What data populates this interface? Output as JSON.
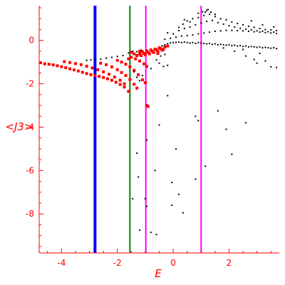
{
  "chart_data": {
    "type": "scatter",
    "xlabel": "E",
    "ylabel": "<J3>",
    "xlim": [
      -4.8,
      3.8
    ],
    "ylim": [
      -9.8,
      1.6
    ],
    "x_ticks": [
      -4,
      -2,
      0,
      2
    ],
    "x_tick_labels": [
      "-4",
      "-2",
      "0",
      "2"
    ],
    "y_ticks": [
      0,
      -2,
      -4,
      -6,
      -8
    ],
    "y_tick_labels": [
      "0",
      "-2",
      "-4",
      "-6",
      "-8"
    ],
    "grid": false,
    "axis_color": "#ff0000",
    "vertical_lines": [
      {
        "x": -2.8,
        "color": "#0000ff"
      },
      {
        "x": -1.55,
        "color": "#008000"
      },
      {
        "x": -0.98,
        "color": "#ff00ff"
      },
      {
        "x": 1.0,
        "color": "#ff00ff"
      }
    ],
    "series": [
      {
        "color": "#ff0000",
        "points": [
          [
            -4.75,
            -1.03
          ],
          [
            -4.6,
            -1.08
          ],
          [
            -4.45,
            -1.1
          ],
          [
            -4.3,
            -1.13
          ],
          [
            -4.15,
            -1.17
          ],
          [
            -4.0,
            -1.21
          ],
          [
            -3.85,
            -1.26
          ],
          [
            -3.7,
            -1.31
          ],
          [
            -3.55,
            -1.36
          ],
          [
            -3.4,
            -1.41
          ],
          [
            -3.25,
            -1.47
          ],
          [
            -3.1,
            -1.53
          ],
          [
            -2.95,
            -1.58
          ],
          [
            -2.8,
            -1.62
          ],
          [
            -2.65,
            -1.66
          ],
          [
            -2.5,
            -1.71
          ],
          [
            -2.35,
            -1.77
          ],
          [
            -2.2,
            -1.84
          ],
          [
            -2.05,
            -1.93
          ],
          [
            -1.9,
            -2.03
          ],
          [
            -1.75,
            -2.15
          ],
          [
            -1.6,
            -2.35
          ],
          [
            -3.9,
            -0.98
          ],
          [
            -3.7,
            -1.02
          ],
          [
            -3.5,
            -1.07
          ],
          [
            -3.3,
            -1.12
          ],
          [
            -3.1,
            -1.19
          ],
          [
            -2.9,
            -1.27
          ],
          [
            -2.7,
            -1.35
          ],
          [
            -2.5,
            -1.45
          ],
          [
            -2.3,
            -1.56
          ],
          [
            -2.1,
            -1.69
          ],
          [
            -1.9,
            -1.84
          ],
          [
            -1.75,
            -2.0
          ],
          [
            -2.6,
            -1.05
          ],
          [
            -2.4,
            -1.12
          ],
          [
            -2.2,
            -1.22
          ],
          [
            -2.0,
            -1.35
          ],
          [
            -1.85,
            -1.48
          ],
          [
            -1.7,
            -1.62
          ],
          [
            -1.55,
            -1.8
          ],
          [
            -1.4,
            -2.02
          ],
          [
            -1.3,
            -2.2
          ],
          [
            -2.0,
            -0.92
          ],
          [
            -1.85,
            -1.0
          ],
          [
            -1.7,
            -1.1
          ],
          [
            -1.55,
            -1.22
          ],
          [
            -1.4,
            -1.38
          ],
          [
            -1.25,
            -1.58
          ],
          [
            -1.1,
            -1.82
          ],
          [
            -1.0,
            -1.95
          ],
          [
            -1.5,
            -0.78
          ],
          [
            -1.35,
            -0.85
          ],
          [
            -1.2,
            -0.95
          ],
          [
            -1.05,
            -1.08
          ],
          [
            -0.95,
            -1.2
          ],
          [
            -1.2,
            -0.62
          ],
          [
            -1.05,
            -0.6
          ],
          [
            -0.9,
            -0.55
          ],
          [
            -0.75,
            -0.5
          ],
          [
            -0.6,
            -0.44
          ],
          [
            -0.45,
            -0.38
          ],
          [
            -0.3,
            -0.3
          ],
          [
            -0.2,
            -0.26
          ],
          [
            -1.3,
            -0.7
          ],
          [
            -1.15,
            -0.7
          ],
          [
            -1.0,
            -0.66
          ],
          [
            -0.85,
            -0.62
          ],
          [
            -0.7,
            -0.56
          ],
          [
            -0.55,
            -0.5
          ],
          [
            -0.4,
            -0.45
          ],
          [
            -1.1,
            -0.52
          ],
          [
            -0.95,
            -0.48
          ],
          [
            -0.8,
            -0.44
          ],
          [
            -0.65,
            -0.4
          ],
          [
            -0.5,
            -0.34
          ],
          [
            -1.5,
            -0.55
          ],
          [
            -1.4,
            -0.62
          ],
          [
            -1.6,
            -0.85
          ],
          [
            -1.2,
            -0.5
          ],
          [
            -0.55,
            -0.6
          ],
          [
            -0.35,
            -0.42
          ],
          [
            -0.95,
            -3.0
          ],
          [
            -0.9,
            -3.05
          ]
        ]
      },
      {
        "color": "#000000",
        "points": [
          [
            -3.1,
            -0.92
          ],
          [
            -2.95,
            -0.9
          ],
          [
            -2.8,
            -0.88
          ],
          [
            -2.6,
            -0.86
          ],
          [
            -2.4,
            -0.82
          ],
          [
            -2.2,
            -0.78
          ],
          [
            -2.0,
            -0.74
          ],
          [
            -1.8,
            -0.7
          ],
          [
            -1.6,
            -0.58
          ],
          [
            -1.45,
            -0.5
          ],
          [
            -1.3,
            -0.52
          ],
          [
            -1.15,
            -0.45
          ],
          [
            -0.6,
            -0.9
          ],
          [
            -0.5,
            -1.05
          ],
          [
            -0.35,
            -1.2
          ],
          [
            -0.2,
            -1.15
          ],
          [
            -0.8,
            -1.3
          ],
          [
            -0.45,
            -0.72
          ],
          [
            -0.3,
            -0.65
          ],
          [
            -1.4,
            -1.45
          ],
          [
            -1.3,
            -1.7
          ],
          [
            -1.2,
            -1.85
          ],
          [
            -1.1,
            -1.62
          ],
          [
            -0.4,
            -0.25
          ],
          [
            -0.3,
            -0.2
          ],
          [
            -0.2,
            -0.15
          ],
          [
            -0.1,
            -0.12
          ],
          [
            0.0,
            -0.1
          ],
          [
            0.1,
            -0.09
          ],
          [
            0.2,
            -0.08
          ],
          [
            0.3,
            -0.1
          ],
          [
            0.4,
            -0.08
          ],
          [
            0.5,
            -0.1
          ],
          [
            0.6,
            -0.12
          ],
          [
            0.7,
            -0.1
          ],
          [
            0.8,
            -0.14
          ],
          [
            0.9,
            -0.1
          ],
          [
            1.0,
            -0.12
          ],
          [
            1.1,
            -0.14
          ],
          [
            1.2,
            -0.16
          ],
          [
            1.3,
            -0.14
          ],
          [
            1.4,
            -0.18
          ],
          [
            1.5,
            -0.16
          ],
          [
            1.6,
            -0.2
          ],
          [
            1.7,
            -0.18
          ],
          [
            1.8,
            -0.2
          ],
          [
            1.9,
            -0.22
          ],
          [
            2.0,
            -0.2
          ],
          [
            2.1,
            -0.24
          ],
          [
            2.2,
            -0.22
          ],
          [
            2.3,
            -0.26
          ],
          [
            2.4,
            -0.24
          ],
          [
            2.5,
            -0.28
          ],
          [
            2.6,
            -0.26
          ],
          [
            2.7,
            -0.3
          ],
          [
            2.8,
            -0.28
          ],
          [
            2.9,
            -0.3
          ],
          [
            3.0,
            -0.32
          ],
          [
            3.1,
            -0.3
          ],
          [
            3.2,
            -0.34
          ],
          [
            3.3,
            -0.32
          ],
          [
            3.4,
            -0.34
          ],
          [
            3.5,
            -0.36
          ],
          [
            3.6,
            -0.34
          ],
          [
            3.7,
            -0.38
          ],
          [
            -0.3,
            0.05
          ],
          [
            -0.1,
            0.1
          ],
          [
            0.1,
            0.15
          ],
          [
            0.3,
            0.2
          ],
          [
            0.5,
            0.22
          ],
          [
            0.7,
            0.25
          ],
          [
            0.9,
            0.3
          ],
          [
            1.1,
            0.34
          ],
          [
            1.3,
            0.38
          ],
          [
            1.5,
            0.42
          ],
          [
            1.7,
            0.44
          ],
          [
            1.9,
            0.46
          ],
          [
            2.1,
            0.46
          ],
          [
            2.3,
            0.45
          ],
          [
            2.5,
            0.44
          ],
          [
            2.7,
            0.42
          ],
          [
            2.9,
            0.4
          ],
          [
            3.1,
            0.38
          ],
          [
            3.3,
            0.36
          ],
          [
            3.5,
            0.34
          ],
          [
            3.7,
            0.32
          ],
          [
            0.0,
            0.3
          ],
          [
            0.2,
            0.45
          ],
          [
            0.4,
            0.55
          ],
          [
            0.6,
            0.62
          ],
          [
            0.8,
            0.72
          ],
          [
            1.0,
            0.8
          ],
          [
            1.2,
            0.88
          ],
          [
            1.4,
            0.92
          ],
          [
            1.6,
            0.82
          ],
          [
            1.8,
            0.75
          ],
          [
            2.0,
            0.68
          ],
          [
            2.2,
            0.62
          ],
          [
            2.4,
            0.56
          ],
          [
            2.6,
            0.52
          ],
          [
            2.8,
            0.48
          ],
          [
            3.0,
            0.44
          ],
          [
            3.2,
            0.42
          ],
          [
            3.4,
            0.4
          ],
          [
            3.6,
            0.38
          ],
          [
            0.5,
            0.9
          ],
          [
            0.7,
            1.0
          ],
          [
            0.9,
            1.05
          ],
          [
            1.1,
            1.15
          ],
          [
            1.3,
            1.2
          ],
          [
            1.5,
            1.1
          ],
          [
            1.7,
            1.0
          ],
          [
            1.9,
            0.95
          ],
          [
            2.1,
            0.85
          ],
          [
            2.3,
            0.78
          ],
          [
            2.5,
            0.72
          ],
          [
            2.7,
            0.65
          ],
          [
            2.9,
            0.6
          ],
          [
            3.1,
            0.55
          ],
          [
            3.3,
            0.5
          ],
          [
            3.5,
            0.48
          ],
          [
            3.7,
            0.45
          ],
          [
            0.9,
            1.25
          ],
          [
            1.05,
            1.32
          ],
          [
            1.2,
            1.38
          ],
          [
            1.35,
            1.3
          ],
          [
            1.5,
            1.2
          ],
          [
            1.25,
            1.42
          ],
          [
            1.15,
            1.3
          ],
          [
            0.2,
            0.6
          ],
          [
            0.35,
            0.75
          ],
          [
            -0.2,
            0.35
          ],
          [
            0.6,
            0.85
          ],
          [
            0.4,
            0.95
          ],
          [
            2.8,
            0.9
          ],
          [
            3.2,
            0.72
          ],
          [
            3.6,
            0.62
          ],
          [
            1.8,
            -0.35
          ],
          [
            2.2,
            -0.5
          ],
          [
            2.6,
            -0.72
          ],
          [
            2.9,
            -0.88
          ],
          [
            3.0,
            -1.05
          ],
          [
            3.3,
            -0.95
          ],
          [
            3.5,
            -1.22
          ],
          [
            3.7,
            -1.25
          ],
          [
            2.5,
            -0.42
          ],
          [
            3.1,
            -0.6
          ],
          [
            -0.2,
            -2.55
          ],
          [
            0.8,
            -3.5
          ],
          [
            0.9,
            -3.7
          ],
          [
            1.6,
            -3.25
          ],
          [
            2.6,
            -3.8
          ],
          [
            -0.5,
            -3.9
          ],
          [
            0.1,
            -5.0
          ],
          [
            -0.95,
            -4.6
          ],
          [
            1.9,
            -4.1
          ],
          [
            -1.3,
            -5.2
          ],
          [
            2.1,
            -5.25
          ],
          [
            1.15,
            -5.8
          ],
          [
            -0.65,
            -6.0
          ],
          [
            -1.25,
            -6.3
          ],
          [
            0.8,
            -6.4
          ],
          [
            -0.05,
            -6.55
          ],
          [
            0.2,
            -7.1
          ],
          [
            -1.45,
            -7.3
          ],
          [
            -1.0,
            -7.3
          ],
          [
            -0.05,
            -7.6
          ],
          [
            0.35,
            -7.95
          ],
          [
            -1.2,
            -8.75
          ],
          [
            -0.8,
            -8.85
          ],
          [
            -0.6,
            -8.95
          ],
          [
            -0.95,
            -7.65
          ]
        ]
      }
    ]
  }
}
